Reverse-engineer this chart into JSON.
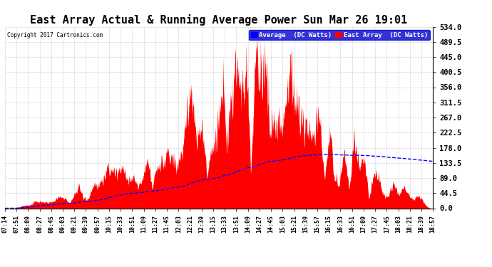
{
  "title": "East Array Actual & Running Average Power Sun Mar 26 19:01",
  "copyright": "Copyright 2017 Cartronics.com",
  "legend_avg": "Average  (DC Watts)",
  "legend_east": "East Array  (DC Watts)",
  "ymin": 0.0,
  "ymax": 534.0,
  "yticks": [
    0.0,
    44.5,
    89.0,
    133.5,
    178.0,
    222.5,
    267.0,
    311.5,
    356.0,
    400.5,
    445.0,
    489.5,
    534.0
  ],
  "bg_color": "#ffffff",
  "grid_color": "#cccccc",
  "bar_color": "#ff0000",
  "avg_line_color": "#0000ff",
  "title_color": "#000000",
  "title_fontsize": 11,
  "xtick_fontsize": 6,
  "ytick_fontsize": 7.5,
  "xticks": [
    "07:14",
    "07:51",
    "08:09",
    "08:27",
    "08:45",
    "09:03",
    "09:21",
    "09:39",
    "09:57",
    "10:15",
    "10:33",
    "10:51",
    "11:09",
    "11:27",
    "11:45",
    "12:03",
    "12:21",
    "12:39",
    "13:15",
    "13:33",
    "13:51",
    "14:09",
    "14:27",
    "14:45",
    "15:03",
    "15:21",
    "15:39",
    "15:57",
    "16:15",
    "16:33",
    "16:51",
    "17:09",
    "17:27",
    "17:45",
    "18:03",
    "18:21",
    "18:39",
    "18:57"
  ]
}
